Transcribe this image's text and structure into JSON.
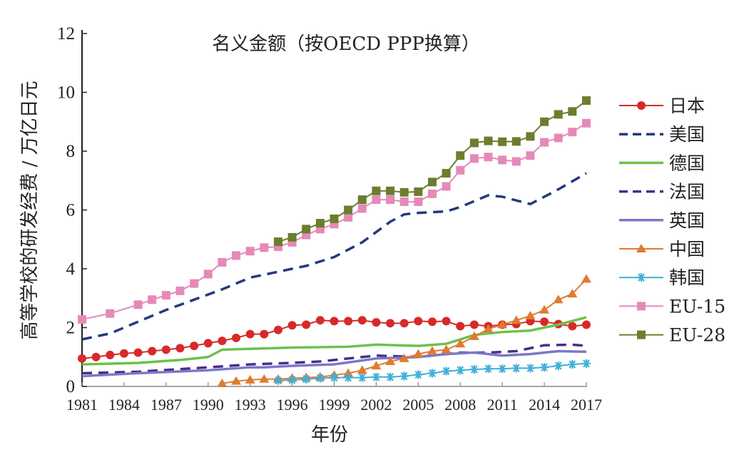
{
  "chart_data": {
    "type": "line",
    "title": "名义金额（按OECD PPP换算）",
    "xlabel": "年份",
    "ylabel": "高等学校的研发经费 / 万亿日元",
    "xlim": [
      1981,
      2017
    ],
    "ylim": [
      0,
      12
    ],
    "xticks": [
      1981,
      1984,
      1987,
      1990,
      1993,
      1996,
      1999,
      2002,
      2005,
      2008,
      2011,
      2014,
      2017
    ],
    "yticks": [
      0,
      2,
      4,
      6,
      8,
      10,
      12
    ],
    "legend_position": "right",
    "grid": false,
    "series": [
      {
        "name": "日本",
        "color": "#d62a2a",
        "style": "solid",
        "marker": "circle",
        "x": [
          1981,
          1982,
          1983,
          1984,
          1985,
          1986,
          1987,
          1988,
          1989,
          1990,
          1991,
          1992,
          1993,
          1994,
          1995,
          1996,
          1997,
          1998,
          1999,
          2000,
          2001,
          2002,
          2003,
          2004,
          2005,
          2006,
          2007,
          2008,
          2009,
          2010,
          2011,
          2012,
          2013,
          2014,
          2015,
          2016,
          2017
        ],
        "y": [
          0.95,
          1.0,
          1.07,
          1.12,
          1.15,
          1.2,
          1.25,
          1.3,
          1.38,
          1.47,
          1.55,
          1.65,
          1.78,
          1.78,
          1.92,
          2.08,
          2.1,
          2.25,
          2.22,
          2.22,
          2.25,
          2.18,
          2.15,
          2.15,
          2.22,
          2.2,
          2.22,
          2.05,
          2.1,
          2.05,
          2.1,
          2.12,
          2.22,
          2.2,
          2.12,
          2.05,
          2.1
        ]
      },
      {
        "name": "美国",
        "color": "#253a7a",
        "style": "dashed",
        "marker": "none",
        "x": [
          1981,
          1983,
          1985,
          1987,
          1989,
          1991,
          1993,
          1995,
          1997,
          1999,
          2001,
          2003,
          2004,
          2005,
          2007,
          2008,
          2010,
          2011,
          2013,
          2015,
          2017
        ],
        "y": [
          1.6,
          1.8,
          2.2,
          2.6,
          2.95,
          3.3,
          3.7,
          3.9,
          4.1,
          4.4,
          4.9,
          5.6,
          5.85,
          5.9,
          5.95,
          6.1,
          6.5,
          6.45,
          6.2,
          6.7,
          7.25
        ]
      },
      {
        "name": "德国",
        "color": "#6cc24a",
        "style": "solid",
        "marker": "none",
        "x": [
          1981,
          1985,
          1988,
          1990,
          1991,
          1993,
          1996,
          2000,
          2002,
          2005,
          2007,
          2009,
          2011,
          2013,
          2015,
          2017
        ],
        "y": [
          0.75,
          0.8,
          0.9,
          1.0,
          1.25,
          1.28,
          1.32,
          1.35,
          1.42,
          1.38,
          1.45,
          1.75,
          1.85,
          1.9,
          2.1,
          2.35
        ]
      },
      {
        "name": "法国",
        "color": "#4a2d8a",
        "style": "dashed",
        "marker": "none",
        "x": [
          1981,
          1985,
          1990,
          1993,
          1996,
          1998,
          2002,
          2005,
          2008,
          2010,
          2012,
          2014,
          2016,
          2017
        ],
        "y": [
          0.45,
          0.5,
          0.65,
          0.75,
          0.8,
          0.85,
          1.05,
          1.0,
          1.15,
          1.15,
          1.2,
          1.4,
          1.42,
          1.38
        ]
      },
      {
        "name": "英国",
        "color": "#7a78c8",
        "style": "solid",
        "marker": "none",
        "x": [
          1981,
          1985,
          1990,
          1993,
          1994,
          1996,
          1999,
          2002,
          2005,
          2007,
          2009,
          2011,
          2013,
          2015,
          2017
        ],
        "y": [
          0.35,
          0.45,
          0.55,
          0.65,
          0.65,
          0.7,
          0.75,
          0.95,
          1.0,
          1.1,
          1.15,
          1.05,
          1.1,
          1.2,
          1.18
        ]
      },
      {
        "name": "中国",
        "color": "#e07b30",
        "style": "solid",
        "marker": "triangle",
        "x": [
          1991,
          1992,
          1993,
          1994,
          1995,
          1996,
          1997,
          1998,
          1999,
          2000,
          2001,
          2002,
          2003,
          2004,
          2005,
          2006,
          2007,
          2008,
          2009,
          2010,
          2011,
          2012,
          2013,
          2014,
          2015,
          2016,
          2017
        ],
        "y": [
          0.1,
          0.18,
          0.22,
          0.25,
          0.25,
          0.28,
          0.3,
          0.32,
          0.38,
          0.45,
          0.55,
          0.7,
          0.85,
          0.95,
          1.1,
          1.2,
          1.25,
          1.45,
          1.7,
          1.95,
          2.1,
          2.25,
          2.4,
          2.6,
          2.95,
          3.15,
          3.65
        ]
      },
      {
        "name": "韩国",
        "color": "#3fb0d8",
        "style": "solid",
        "marker": "asterisk",
        "x": [
          1995,
          1996,
          1997,
          1998,
          1999,
          2000,
          2001,
          2002,
          2003,
          2004,
          2005,
          2006,
          2007,
          2008,
          2009,
          2010,
          2011,
          2012,
          2013,
          2014,
          2015,
          2016,
          2017
        ],
        "y": [
          0.2,
          0.22,
          0.25,
          0.28,
          0.3,
          0.3,
          0.3,
          0.32,
          0.32,
          0.35,
          0.4,
          0.45,
          0.52,
          0.55,
          0.58,
          0.6,
          0.6,
          0.62,
          0.62,
          0.65,
          0.7,
          0.75,
          0.78
        ]
      },
      {
        "name": "EU-15",
        "color": "#e58ab8",
        "style": "solid",
        "marker": "square",
        "x": [
          1981,
          1983,
          1985,
          1986,
          1987,
          1988,
          1989,
          1990,
          1991,
          1992,
          1993,
          1994,
          1995,
          1996,
          1997,
          1998,
          1999,
          2000,
          2001,
          2002,
          2003,
          2004,
          2005,
          2006,
          2007,
          2008,
          2009,
          2010,
          2011,
          2012,
          2013,
          2014,
          2015,
          2016,
          2017
        ],
        "y": [
          2.28,
          2.48,
          2.78,
          2.95,
          3.1,
          3.25,
          3.5,
          3.82,
          4.22,
          4.45,
          4.6,
          4.72,
          4.75,
          4.9,
          5.15,
          5.35,
          5.52,
          5.75,
          6.05,
          6.35,
          6.35,
          6.28,
          6.28,
          6.55,
          6.8,
          7.35,
          7.75,
          7.8,
          7.7,
          7.65,
          7.85,
          8.3,
          8.45,
          8.65,
          8.95
        ]
      },
      {
        "name": "EU-28",
        "color": "#6b7d2e",
        "style": "solid",
        "marker": "square",
        "x": [
          1995,
          1996,
          1997,
          1998,
          1999,
          2000,
          2001,
          2002,
          2003,
          2004,
          2005,
          2006,
          2007,
          2008,
          2009,
          2010,
          2011,
          2012,
          2013,
          2014,
          2015,
          2016,
          2017
        ],
        "y": [
          4.92,
          5.07,
          5.35,
          5.55,
          5.7,
          6.0,
          6.35,
          6.65,
          6.65,
          6.6,
          6.62,
          6.95,
          7.25,
          7.85,
          8.28,
          8.35,
          8.32,
          8.33,
          8.5,
          9.0,
          9.25,
          9.35,
          9.72
        ]
      }
    ]
  }
}
